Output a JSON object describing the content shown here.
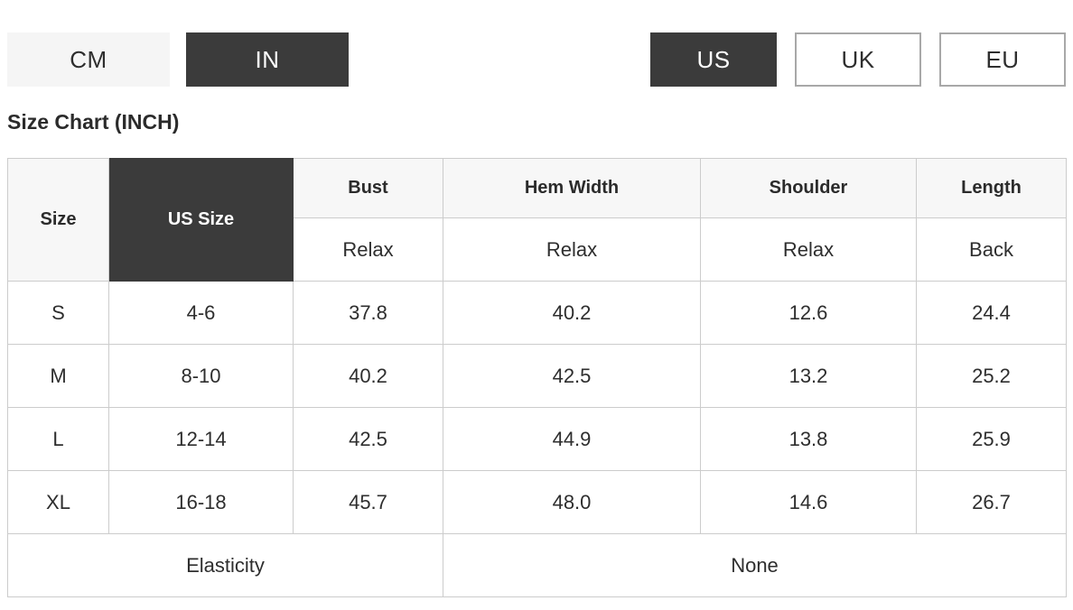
{
  "unit_toggle": {
    "options": [
      {
        "label": "CM",
        "selected": false
      },
      {
        "label": "IN",
        "selected": true
      }
    ]
  },
  "region_toggle": {
    "options": [
      {
        "label": "US",
        "selected": true
      },
      {
        "label": "UK",
        "selected": false
      },
      {
        "label": "EU",
        "selected": false
      }
    ]
  },
  "heading": "Size Chart (INCH)",
  "size_table": {
    "headers": {
      "size": "Size",
      "us_size": "US Size",
      "bust": "Bust",
      "hem_width": "Hem Width",
      "shoulder": "Shoulder",
      "length": "Length"
    },
    "sub_headers": {
      "bust": "Relax",
      "hem_width": "Relax",
      "shoulder": "Relax",
      "length": "Back"
    },
    "rows": [
      {
        "size": "S",
        "us_size": "4-6",
        "bust": "37.8",
        "hem_width": "40.2",
        "shoulder": "12.6",
        "length": "24.4"
      },
      {
        "size": "M",
        "us_size": "8-10",
        "bust": "40.2",
        "hem_width": "42.5",
        "shoulder": "13.2",
        "length": "25.2"
      },
      {
        "size": "L",
        "us_size": "12-14",
        "bust": "42.5",
        "hem_width": "44.9",
        "shoulder": "13.8",
        "length": "25.9"
      },
      {
        "size": "XL",
        "us_size": "16-18",
        "bust": "45.7",
        "hem_width": "48.0",
        "shoulder": "14.6",
        "length": "26.7"
      }
    ],
    "footer": {
      "label": "Elasticity",
      "value": "None"
    }
  },
  "colors": {
    "accent_dark": "#3b3b3b",
    "header_bg": "#f7f7f7",
    "inactive_bg": "#f5f5f5",
    "outline_border": "#a8a8a8",
    "table_border": "#cccccc"
  }
}
